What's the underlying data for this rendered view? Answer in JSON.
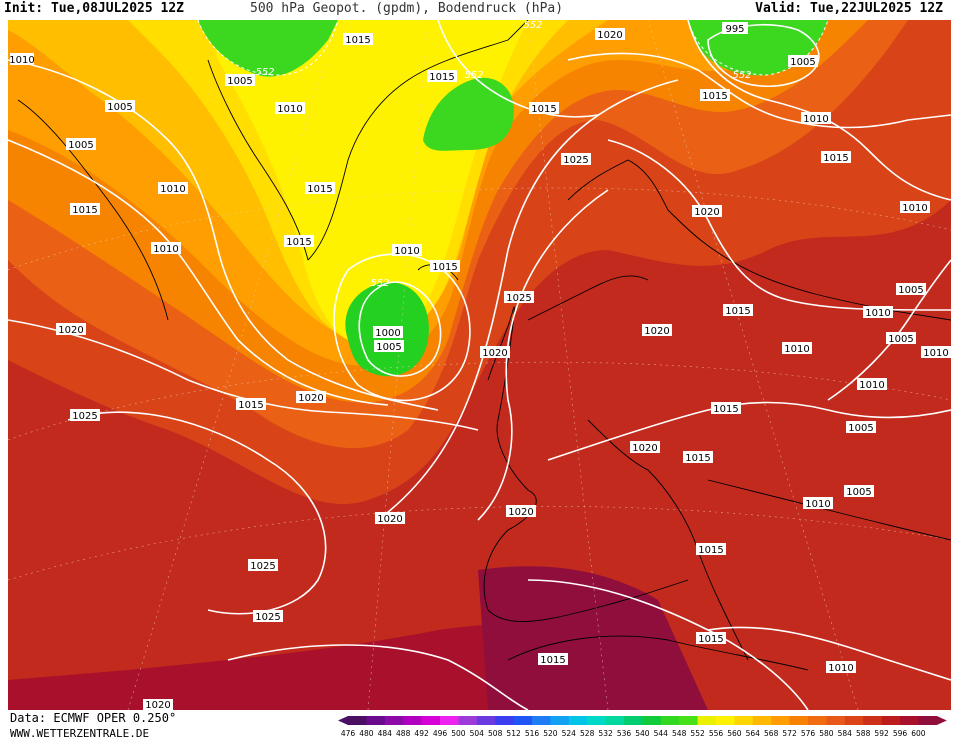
{
  "header": {
    "init": "Init: Tue,08JUL2025 12Z",
    "title": "500 hPa Geopot. (gpdm), Bodendruck (hPa)",
    "valid": "Valid: Tue,22JUL2025 12Z"
  },
  "footer": {
    "data_source": "Data: ECMWF OPER 0.250°",
    "url": "WWW.WETTERZENTRALE.DE"
  },
  "legend": {
    "values": [
      476,
      480,
      484,
      488,
      492,
      496,
      500,
      504,
      508,
      512,
      516,
      520,
      524,
      528,
      532,
      536,
      540,
      544,
      548,
      552,
      556,
      560,
      564,
      568,
      572,
      576,
      580,
      584,
      588,
      592,
      596,
      600
    ],
    "colors": [
      "#4b0f64",
      "#6a0a8c",
      "#8b0aa8",
      "#b000c0",
      "#d600d6",
      "#ee22ee",
      "#9d3bd8",
      "#6a3ae0",
      "#3c3cf0",
      "#1f55f5",
      "#1e7cf5",
      "#12a0f2",
      "#00c4e8",
      "#00d8c8",
      "#00d8a0",
      "#00cc70",
      "#10cc3c",
      "#30d820",
      "#48e018",
      "#eaf000",
      "#fff200",
      "#ffd600",
      "#ffb800",
      "#ff9c00",
      "#f88000",
      "#f06a10",
      "#e85818",
      "#dc4418",
      "#cc3018",
      "#bc1c1c",
      "#a8102c",
      "#900e3c"
    ]
  },
  "map": {
    "geopotential_label": "552",
    "pressure_labels": [
      {
        "id": "p1",
        "text": "1010"
      },
      {
        "id": "p2",
        "text": "1005"
      },
      {
        "id": "p3",
        "text": "1005"
      },
      {
        "id": "p4",
        "text": "1010"
      },
      {
        "id": "p5",
        "text": "1015"
      },
      {
        "id": "p6",
        "text": "1010"
      },
      {
        "id": "p7",
        "text": "1020"
      },
      {
        "id": "p8",
        "text": "1025"
      },
      {
        "id": "p9",
        "text": "1025"
      },
      {
        "id": "p10",
        "text": "1025"
      },
      {
        "id": "p11",
        "text": "1020"
      },
      {
        "id": "p12",
        "text": "1015"
      },
      {
        "id": "p13",
        "text": "1005"
      },
      {
        "id": "p14",
        "text": "1010"
      },
      {
        "id": "p15",
        "text": "1015"
      },
      {
        "id": "p16",
        "text": "1015"
      },
      {
        "id": "p17",
        "text": "1015"
      },
      {
        "id": "p18",
        "text": "1010"
      },
      {
        "id": "p19",
        "text": "1015"
      },
      {
        "id": "p20",
        "text": "1000"
      },
      {
        "id": "p21",
        "text": "1005"
      },
      {
        "id": "p22",
        "text": "1015"
      },
      {
        "id": "p23",
        "text": "1015"
      },
      {
        "id": "p24",
        "text": "1020"
      },
      {
        "id": "p25",
        "text": "1020"
      },
      {
        "id": "p26",
        "text": "1025"
      },
      {
        "id": "p27",
        "text": "1020"
      },
      {
        "id": "p28",
        "text": "1020"
      },
      {
        "id": "p29",
        "text": "1020"
      },
      {
        "id": "p30",
        "text": "1025"
      },
      {
        "id": "p31",
        "text": "1015"
      },
      {
        "id": "p32",
        "text": "995"
      },
      {
        "id": "p33",
        "text": "1005"
      },
      {
        "id": "p34",
        "text": "1015"
      },
      {
        "id": "p35",
        "text": "1010"
      },
      {
        "id": "p36",
        "text": "1020"
      },
      {
        "id": "p37",
        "text": "1015"
      },
      {
        "id": "p38",
        "text": "1020"
      },
      {
        "id": "p39",
        "text": "1010"
      },
      {
        "id": "p40",
        "text": "1015"
      },
      {
        "id": "p41",
        "text": "1020"
      },
      {
        "id": "p42",
        "text": "1015"
      },
      {
        "id": "p43",
        "text": "1015"
      },
      {
        "id": "p44",
        "text": "1010"
      },
      {
        "id": "p45",
        "text": "1005"
      },
      {
        "id": "p46",
        "text": "1010"
      },
      {
        "id": "p47",
        "text": "1005"
      },
      {
        "id": "p48",
        "text": "1010"
      },
      {
        "id": "p49",
        "text": "1005"
      },
      {
        "id": "p50",
        "text": "1010"
      },
      {
        "id": "p51",
        "text": "1005"
      },
      {
        "id": "p52",
        "text": "1010"
      },
      {
        "id": "p53",
        "text": "1015"
      },
      {
        "id": "p54",
        "text": "1015"
      },
      {
        "id": "p55",
        "text": "1010"
      }
    ]
  }
}
